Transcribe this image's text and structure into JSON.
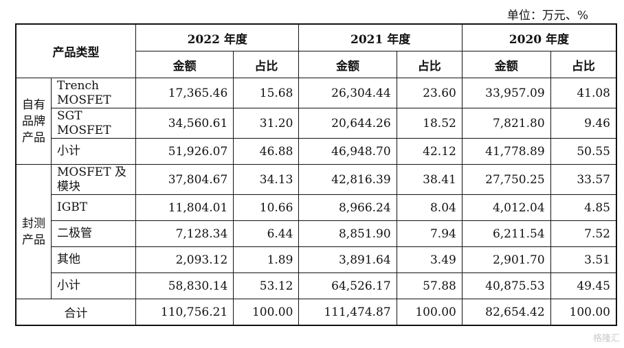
{
  "unit": "单位：万元、%",
  "header": {
    "product_type": "产品类型",
    "years": [
      "2022 年度",
      "2021 年度",
      "2020 年度"
    ],
    "sub": [
      "金额",
      "占比",
      "金额",
      "占比",
      "金额",
      "占比"
    ]
  },
  "groups": {
    "own": "自有品牌产品",
    "pkg": "封测产品"
  },
  "rows": [
    {
      "name": "Trench MOSFET",
      "vals": [
        "17,365.46",
        "15.68",
        "26,304.44",
        "23.60",
        "33,957.09",
        "41.08"
      ]
    },
    {
      "name": "SGT MOSFET",
      "vals": [
        "34,560.61",
        "31.20",
        "20,644.26",
        "18.52",
        "7,821.80",
        "9.46"
      ]
    },
    {
      "name": "小计",
      "vals": [
        "51,926.07",
        "46.88",
        "46,948.70",
        "42.12",
        "41,778.89",
        "50.55"
      ]
    },
    {
      "name": "MOSFET 及模块",
      "vals": [
        "37,804.67",
        "34.13",
        "42,816.39",
        "38.41",
        "27,750.25",
        "33.57"
      ]
    },
    {
      "name": "IGBT",
      "vals": [
        "11,804.01",
        "10.66",
        "8,966.24",
        "8.04",
        "4,012.04",
        "4.85"
      ]
    },
    {
      "name": "二极管",
      "vals": [
        "7,128.34",
        "6.44",
        "8,851.90",
        "7.94",
        "6,211.54",
        "7.52"
      ]
    },
    {
      "name": "其他",
      "vals": [
        "2,093.12",
        "1.89",
        "3,891.64",
        "3.49",
        "2,901.70",
        "3.51"
      ]
    },
    {
      "name": "小计",
      "vals": [
        "58,830.14",
        "53.12",
        "64,526.17",
        "57.88",
        "40,875.53",
        "49.45"
      ]
    }
  ],
  "total": {
    "name": "合计",
    "vals": [
      "110,756.21",
      "100.00",
      "111,474.87",
      "100.00",
      "82,654.42",
      "100.00"
    ]
  },
  "watermark": "格隆汇"
}
